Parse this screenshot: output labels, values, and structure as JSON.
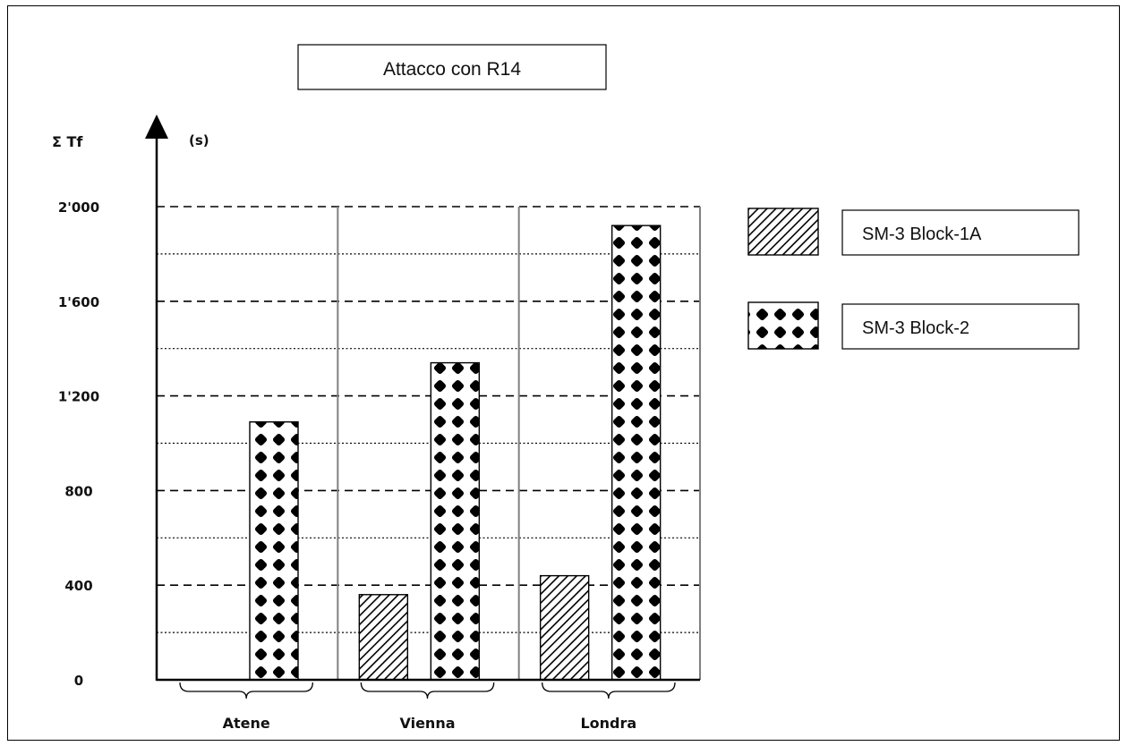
{
  "chart_data": {
    "type": "bar",
    "title": "Attacco con R14",
    "ylabel": "Σ Tf",
    "yunit": "(s)",
    "xlabel": "",
    "categories": [
      "Atene",
      "Vienna",
      "Londra"
    ],
    "series": [
      {
        "name": "SM-3 Block-1A",
        "pattern": "diagonal-hatch",
        "values": [
          0,
          360,
          440
        ]
      },
      {
        "name": "SM-3 Block-2",
        "pattern": "diamond-dots",
        "values": [
          1090,
          1340,
          1920
        ]
      }
    ],
    "ylim": [
      0,
      2000
    ],
    "yticks": [
      0,
      400,
      800,
      1200,
      1600,
      2000
    ],
    "ytick_labels": [
      "0",
      "400",
      "800",
      "1'200",
      "1'600",
      "2'000"
    ],
    "minor_gridlines": [
      200,
      600,
      1000,
      1400,
      1800
    ],
    "major_grid_style": "dashed",
    "minor_grid_style": "dotted",
    "legend_position": "right",
    "colors": {
      "ink": "#000000",
      "background": "#ffffff",
      "separator": "#808080"
    }
  }
}
